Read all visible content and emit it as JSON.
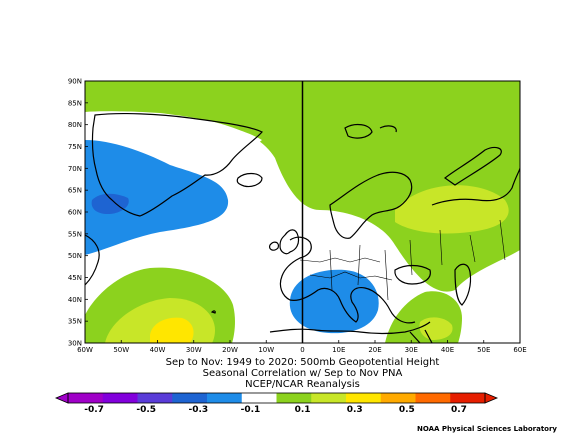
{
  "map": {
    "lat_ticks": [
      "90N",
      "85N",
      "80N",
      "75N",
      "70N",
      "65N",
      "60N",
      "55N",
      "50N",
      "45N",
      "40N",
      "35N",
      "30N"
    ],
    "lon_ticks": [
      "60W",
      "50W",
      "40W",
      "30W",
      "20W",
      "10W",
      "0",
      "10E",
      "20E",
      "30E",
      "40E",
      "50E",
      "60E"
    ],
    "caption": {
      "line1": "Sep to Nov: 1949 to 2020: 500mb Geopotential Height",
      "line2": "Seasonal Correlation w/ Sep to Nov PNA",
      "line3": "NCEP/NCAR Reanalysis"
    },
    "colorbar": {
      "labels": [
        "-0.7",
        "-0.5",
        "-0.3",
        "-0.1",
        "0.1",
        "0.3",
        "0.5",
        "0.7"
      ],
      "colors": [
        "#a000c8",
        "#8200dc",
        "#5a3cd8",
        "#1e64d2",
        "#1e8ce8",
        "#ffffff",
        "#8cd21e",
        "#c8e628",
        "#ffe600",
        "#ffaa00",
        "#ff6a00",
        "#e61e00"
      ]
    },
    "credit": "NOAA Physical Sciences Laboratory"
  }
}
